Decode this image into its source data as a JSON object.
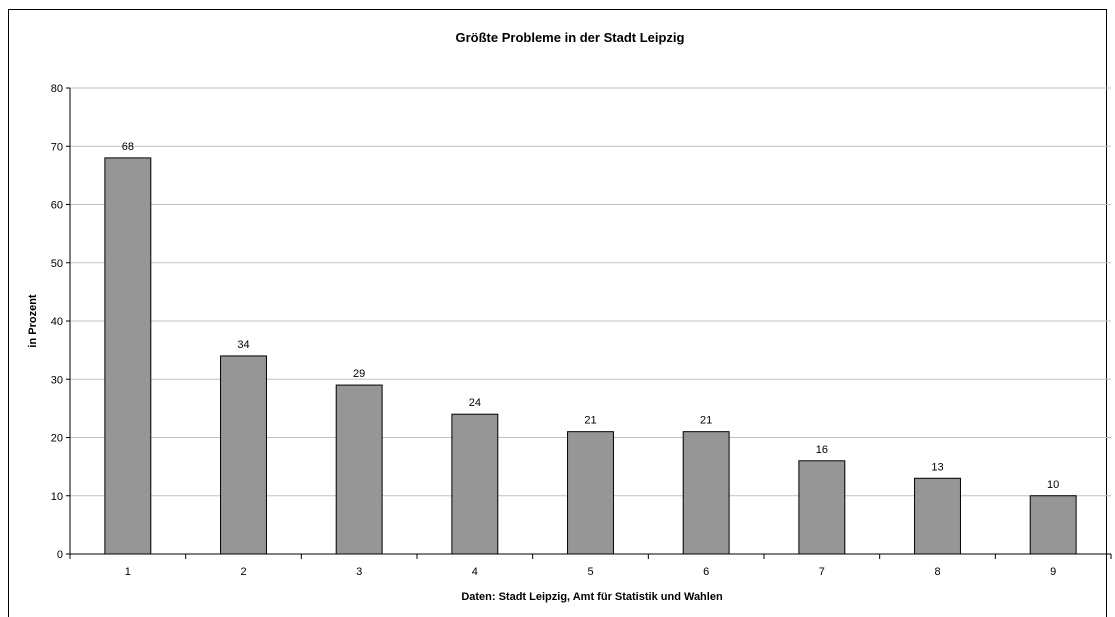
{
  "chart_data": {
    "type": "bar",
    "title": "Größte Probleme in der Stadt Leipzig",
    "xlabel": "Daten: Stadt Leipzig, Amt für Statistik und Wahlen",
    "ylabel": "in Prozent",
    "categories": [
      "1",
      "2",
      "3",
      "4",
      "5",
      "6",
      "7",
      "8",
      "9"
    ],
    "values": [
      68,
      34,
      29,
      24,
      21,
      21,
      16,
      13,
      10
    ],
    "ylim": [
      0,
      80
    ],
    "yticks": [
      0,
      10,
      20,
      30,
      40,
      50,
      60,
      70,
      80
    ],
    "grid": true,
    "legend": "none",
    "colors": {
      "bar_fill": "#969696",
      "bar_stroke": "#000000",
      "gridline": "#c0c0c0"
    }
  }
}
